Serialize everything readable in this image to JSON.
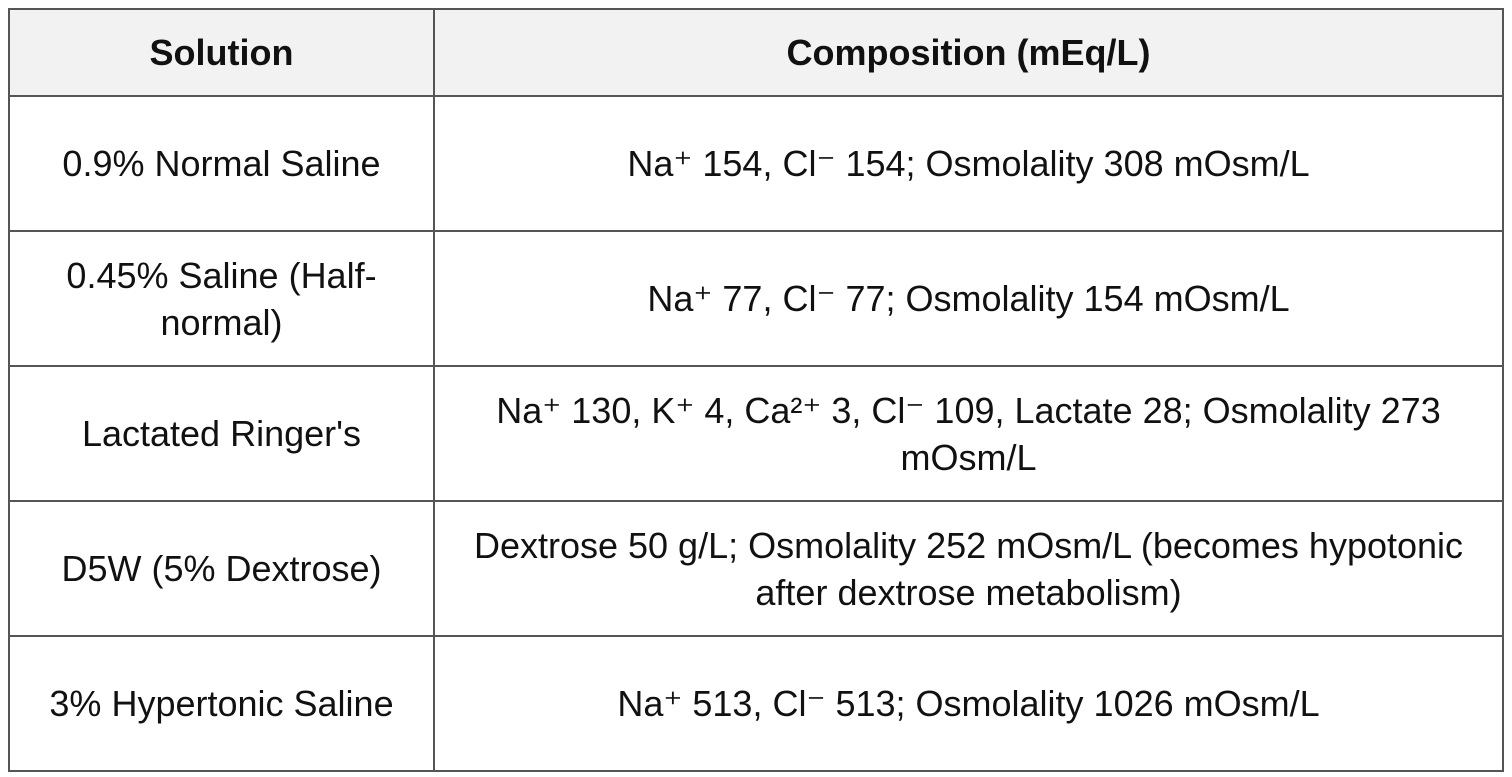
{
  "table": {
    "header": [
      "Solution",
      "Composition (mEq/L)"
    ],
    "rows": [
      [
        "0.9% Normal Saline",
        "Na⁺ 154, Cl⁻ 154; Osmolality 308 mOsm/L"
      ],
      [
        "0.45% Saline (Half-normal)",
        "Na⁺ 77, Cl⁻ 77; Osmolality 154 mOsm/L"
      ],
      [
        "Lactated Ringer's",
        "Na⁺ 130, K⁺ 4, Ca²⁺ 3, Cl⁻ 109, Lactate 28; Osmolality 273 mOsm/L"
      ],
      [
        "D5W (5% Dextrose)",
        "Dextrose 50 g/L; Osmolality 252 mOsm/L (becomes hypotonic after dextrose metabolism)"
      ],
      [
        "3% Hypertonic Saline",
        "Na⁺ 513, Cl⁻ 513; Osmolality 1026 mOsm/L"
      ]
    ]
  }
}
